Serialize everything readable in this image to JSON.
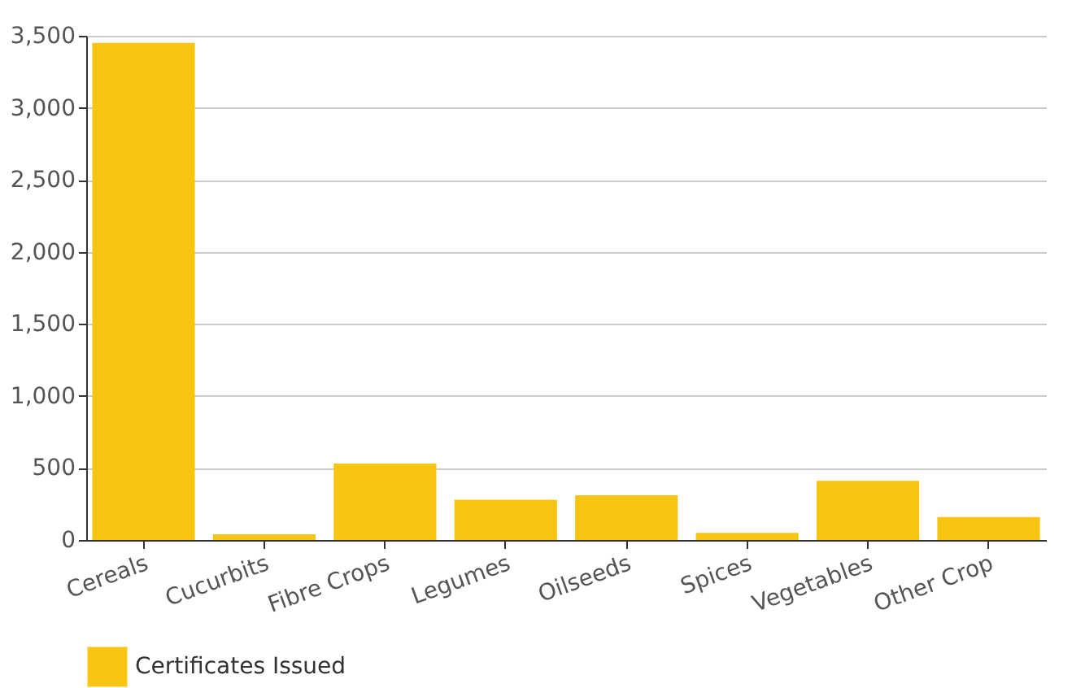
{
  "chart_data": {
    "type": "bar",
    "categories": [
      "Cereals",
      "Cucurbits",
      "Fibre Crops",
      "Legumes",
      "Oilseeds",
      "Spices",
      "Vegetables",
      "Other Crop"
    ],
    "series": [
      {
        "name": "Certificates Issued",
        "color": "#f7c511",
        "values": [
          3450,
          40,
          530,
          280,
          310,
          50,
          410,
          160
        ]
      }
    ],
    "ylim": [
      0,
      3500
    ],
    "yticks": [
      0,
      500,
      {
        "value": 1000,
        "label": "1,000"
      },
      {
        "value": 1500,
        "label": "1,500"
      },
      {
        "value": 2000,
        "label": "2,000"
      },
      {
        "value": 2500,
        "label": "2,500"
      },
      {
        "value": 3000,
        "label": "3,000"
      },
      {
        "value": 3500,
        "label": "3,500"
      }
    ],
    "grid": "y",
    "legend": "bottom"
  }
}
